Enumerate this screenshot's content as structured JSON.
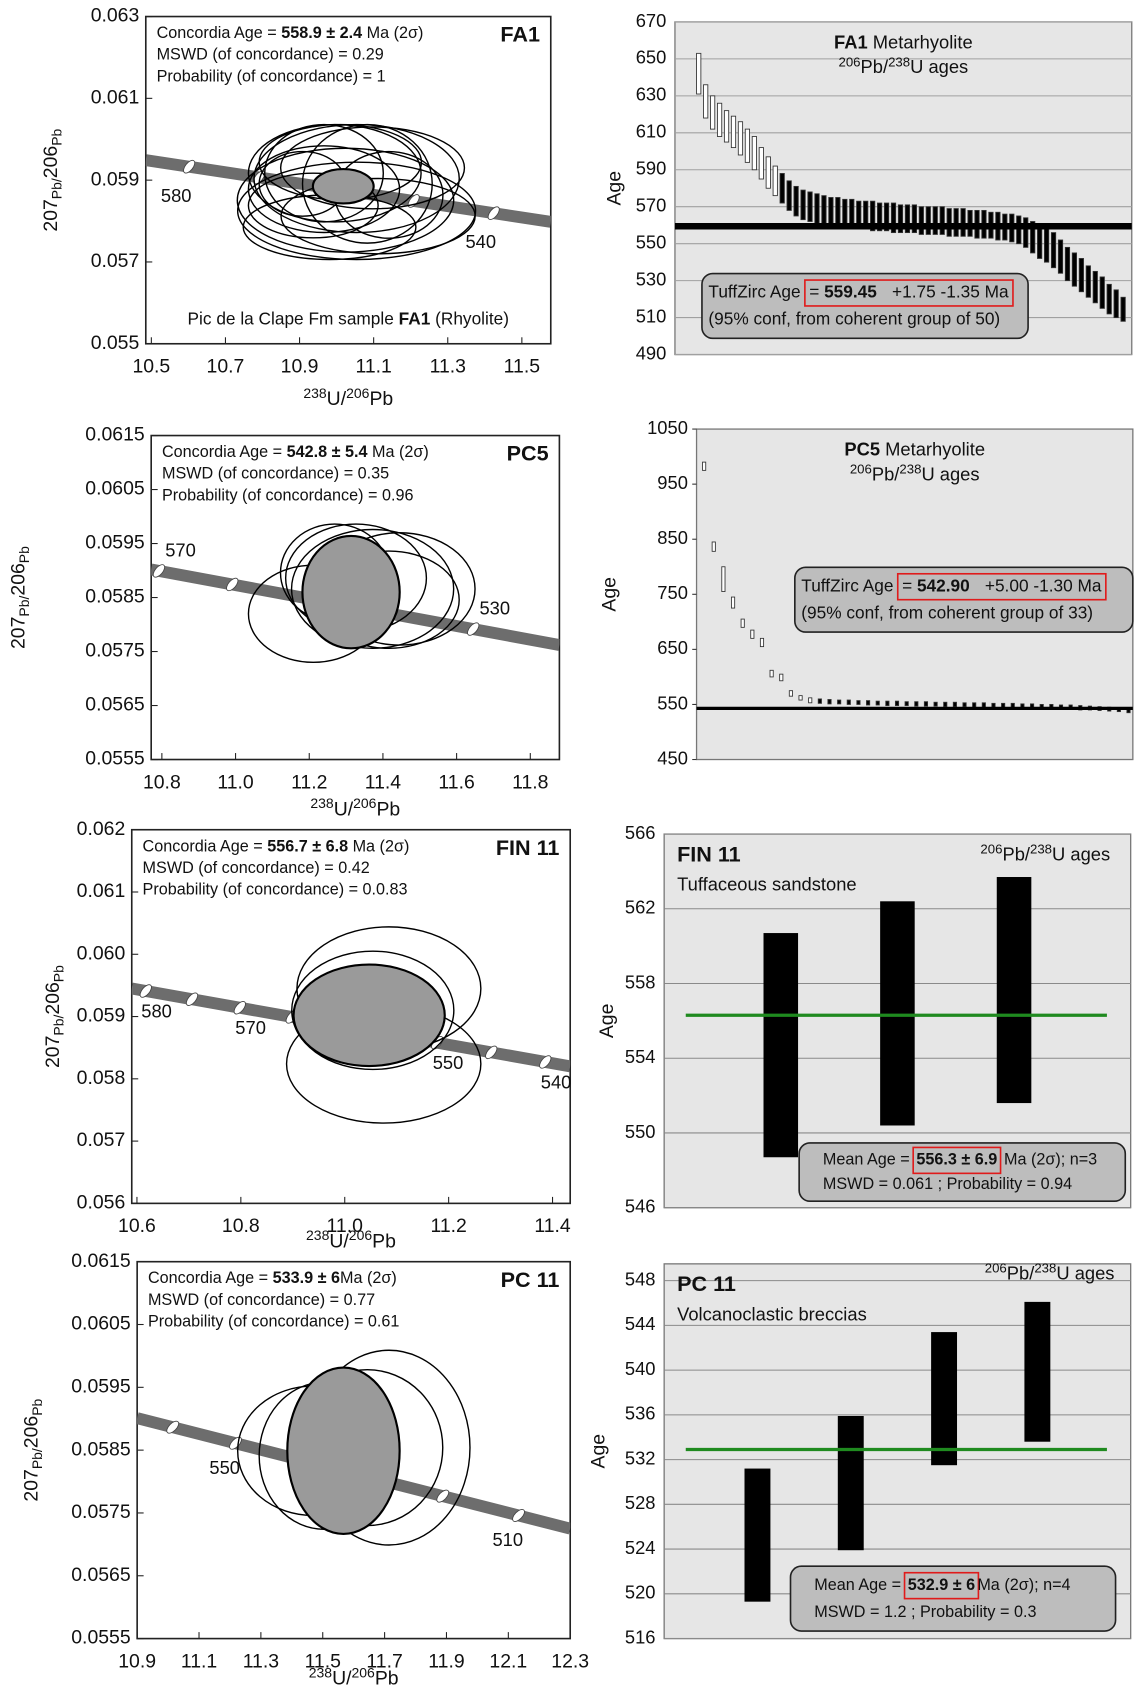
{
  "chart_data": [
    {
      "type": "concordia",
      "sample": "FA1",
      "age_label": "Concordia Age = ",
      "age": "558.9 ± 2.4",
      "age_unit": " Ma (2σ)",
      "mswd": "MSWD (of concordance) = 0.29",
      "probability": "Probability (of concordance) = 1",
      "note": [
        "Pic de la Clape Fm sample ",
        "FA1",
        " (Rhyolite)"
      ],
      "x_label": [
        "238",
        "U/",
        "206",
        "Pb"
      ],
      "y_label": [
        "207",
        "Pb/",
        "206",
        "Pb"
      ],
      "xlim": [
        10.485,
        11.578
      ],
      "xticks": [
        10.5,
        10.7,
        10.9,
        11.1,
        11.3,
        11.5
      ],
      "ylim": [
        0.055,
        0.063
      ],
      "yticks": [
        0.055,
        0.057,
        0.059,
        0.061,
        0.063
      ],
      "concordia": {
        "x": [
          10.485,
          11.578
        ],
        "y": [
          0.05949,
          0.05798
        ]
      },
      "concordia_marks": {
        "x": [
          10.602,
          10.791,
          11.208,
          11.424
        ],
        "labels": [
          580,
          null,
          null,
          540
        ]
      },
      "ellipses": {
        "x": [
          10.995,
          11.054,
          10.966,
          11.024,
          11.083,
          10.937,
          11.112,
          11.01,
          10.981,
          11.141,
          10.908,
          11.054,
          10.966,
          11.097
        ],
        "y": [
          0.05917,
          0.05904,
          0.05878,
          0.05851,
          0.05891,
          0.05838,
          0.05812,
          0.05944,
          0.05785,
          0.05864,
          0.05891,
          0.05825,
          0.05917,
          0.0593
        ],
        "rx": [
          0.233,
          0.277,
          0.204,
          0.292,
          0.175,
          0.175,
          0.262,
          0.219,
          0.233,
          0.146,
          0.117,
          0.321,
          0.16,
          0.248
        ],
        "ry": [
          0.00119,
          0.00132,
          0.00106,
          0.00127,
          0.00145,
          0.00079,
          0.00092,
          0.00092,
          0.00079,
          0.00106,
          0.00079,
          0.00119,
          0.00119,
          0.001
        ]
      },
      "mean_ellipse": {
        "x": 11.018,
        "y": 0.05885,
        "rx": 0.082,
        "ry": 0.00042
      }
    },
    {
      "type": "rank",
      "title": [
        "FA1",
        " Metarhyolite"
      ],
      "subtitle": [
        "206",
        "Pb/",
        "238",
        "U ages"
      ],
      "y_label": "Age",
      "ylim": [
        490,
        670
      ],
      "yticks": [
        490,
        510,
        530,
        550,
        570,
        590,
        610,
        630,
        650,
        670
      ],
      "grid": true,
      "low": [
        631,
        618,
        612,
        608,
        605,
        602,
        598,
        594,
        590,
        585,
        580,
        576,
        572,
        568,
        565,
        563,
        562,
        561,
        560,
        560,
        559,
        559,
        558,
        558,
        558,
        557,
        557,
        557,
        556,
        556,
        556,
        556,
        555,
        555,
        555,
        555,
        554,
        554,
        554,
        554,
        553,
        553,
        553,
        552,
        552,
        551,
        550,
        548,
        545,
        542,
        540,
        537,
        534,
        530,
        527,
        524,
        521,
        518,
        515,
        512,
        510,
        508
      ],
      "high": [
        653,
        636,
        630,
        626,
        622,
        619,
        616,
        612,
        608,
        602,
        597,
        592,
        588,
        584,
        581,
        579,
        578,
        577,
        576,
        575,
        575,
        574,
        574,
        573,
        573,
        573,
        572,
        572,
        572,
        571,
        571,
        571,
        570,
        570,
        570,
        570,
        569,
        569,
        569,
        568,
        568,
        568,
        567,
        567,
        566,
        566,
        565,
        564,
        562,
        560,
        558,
        556,
        552,
        548,
        545,
        542,
        538,
        535,
        532,
        528,
        525,
        521
      ],
      "coherent": [
        false,
        false,
        false,
        false,
        false,
        false,
        false,
        false,
        false,
        false,
        false,
        false,
        true,
        true,
        true,
        true,
        true,
        true,
        true,
        true,
        true,
        true,
        true,
        true,
        true,
        true,
        true,
        true,
        true,
        true,
        true,
        true,
        true,
        true,
        true,
        true,
        true,
        true,
        true,
        true,
        true,
        true,
        true,
        true,
        true,
        true,
        true,
        true,
        true,
        true,
        true,
        true,
        true,
        true,
        true,
        true,
        true,
        true,
        true,
        true,
        true,
        true
      ],
      "mean": 559.45,
      "result": {
        "label": "TuffZirc Age",
        "prefix": "= ",
        "value": "559.45",
        "error": "+1.75 -1.35 Ma",
        "note": "(95% conf, from coherent group of 50)"
      }
    },
    {
      "type": "concordia",
      "sample": "PC5",
      "age_label": "Concordia Age = ",
      "age": "542.8 ± 5.4",
      "age_unit": " Ma (2σ)",
      "mswd": "MSWD (of concordance) = 0.35",
      "probability": "Probability (of concordance) = 0.96",
      "x_label": [
        "238",
        "U/",
        "206",
        "Pb"
      ],
      "y_label": [
        "207",
        "Pb/",
        "206",
        "Pb"
      ],
      "xlim": [
        10.771,
        11.879
      ],
      "xticks": [
        10.8,
        {
          "value": 11,
          "label": "11.0"
        },
        11.2,
        11.4,
        11.6,
        11.8
      ],
      "ylim": [
        0.0555,
        0.0615
      ],
      "yticks": [
        0.0555,
        0.0565,
        0.0575,
        0.0585,
        0.0595,
        0.0605,
        0.0615
      ],
      "concordia": {
        "x": [
          10.771,
          11.879
        ],
        "y": [
          0.05902,
          0.05762
        ]
      },
      "concordia_marks": {
        "x": [
          10.792,
          10.991,
          11.425,
          11.645
        ],
        "labels": [
          570,
          null,
          null,
          530
        ]
      },
      "ellipses": {
        "x": [
          11.211,
          11.372,
          11.327,
          11.445,
          11.416,
          11.269
        ],
        "y": [
          0.0582,
          0.05866,
          0.05886,
          0.05866,
          0.05846,
          0.05896
        ],
        "rx": [
          0.176,
          0.22,
          0.191,
          0.205,
          0.191,
          0.147
        ],
        "ry": [
          0.0009,
          0.0011,
          0.001,
          0.00104,
          0.0009,
          0.0009
        ]
      },
      "mean_ellipse": {
        "x": 11.3135,
        "y": 0.0586,
        "rx": 0.132,
        "ry": 0.00104
      }
    },
    {
      "type": "rank",
      "title": [
        "PC5",
        " Metarhyolite"
      ],
      "subtitle": [
        "206",
        "Pb/",
        "238",
        "U ages"
      ],
      "y_label": "Age",
      "ylim": [
        450,
        1050
      ],
      "yticks": [
        450,
        550,
        650,
        750,
        850,
        950,
        1050
      ],
      "grid": false,
      "low": [
        975,
        828,
        755,
        725,
        690,
        670,
        655,
        600,
        593,
        565,
        558,
        553,
        552,
        551,
        551,
        550,
        550,
        549,
        549,
        548,
        548,
        548,
        547,
        547,
        547,
        546,
        546,
        546,
        545,
        545,
        545,
        544,
        544,
        544,
        543,
        543,
        542,
        542,
        541,
        540,
        540,
        539,
        538,
        537,
        535
      ],
      "high": [
        990,
        845,
        800,
        745,
        705,
        685,
        670,
        612,
        605,
        575,
        566,
        562,
        560,
        559,
        558,
        558,
        557,
        557,
        556,
        556,
        556,
        555,
        555,
        555,
        554,
        554,
        554,
        553,
        553,
        553,
        552,
        552,
        552,
        551,
        551,
        550,
        550,
        549,
        549,
        548,
        547,
        546,
        545,
        544,
        543
      ],
      "coherent": [
        false,
        false,
        false,
        false,
        false,
        false,
        false,
        false,
        false,
        false,
        false,
        false,
        true,
        true,
        true,
        true,
        true,
        true,
        true,
        true,
        true,
        true,
        true,
        true,
        true,
        true,
        true,
        true,
        true,
        true,
        true,
        true,
        true,
        true,
        true,
        true,
        true,
        true,
        true,
        true,
        true,
        true,
        true,
        true,
        true
      ],
      "mean": 542.9,
      "result": {
        "label": "TuffZirc Age",
        "prefix": "= ",
        "value": "542.90",
        "error": "+5.00 -1.30 Ma",
        "note": "(95% conf, from coherent group of 33)"
      }
    },
    {
      "type": "concordia",
      "sample": "FIN 11",
      "age_label": "Concordia Age = ",
      "age": "556.7 ± 6.8",
      "age_unit": " Ma (2σ)",
      "mswd": "MSWD (of concordance) = 0.42",
      "probability": "Probability (of concordance) = 0.0.83",
      "x_label": [
        "238",
        "U/",
        "206",
        "Pb"
      ],
      "y_label": [
        "207",
        "Pb/",
        "206",
        "Pb"
      ],
      "xlim": [
        10.59,
        11.434
      ],
      "xticks": [
        10.6,
        10.8,
        {
          "value": 11,
          "label": "11.0"
        },
        11.2,
        11.4
      ],
      "ylim": [
        0.056,
        0.062
      ],
      "yticks": [
        0.056,
        0.057,
        0.058,
        0.059,
        {
          "value": 0.06,
          "label": "0.060"
        },
        0.061,
        0.062
      ],
      "concordia": {
        "x": [
          10.59,
          11.434
        ],
        "y": [
          0.05945,
          0.0582
        ]
      },
      "concordia_marks": {
        "x": [
          10.617,
          10.706,
          10.798,
          10.898,
          11.178,
          11.282,
          11.386
        ],
        "labels": [
          580,
          null,
          570,
          null,
          550,
          null,
          540
        ]
      },
      "ellipses": {
        "x": [
          11.085,
          11.075,
          11.054
        ],
        "y": [
          0.05945,
          0.05824,
          0.0591
        ],
        "rx": [
          0.177,
          0.187,
          0.156
        ],
        "ry": [
          0.00099,
          0.00095,
          0.00095
        ]
      },
      "mean_ellipse": {
        "x": 11.047,
        "y": 0.05902,
        "rx": 0.1455,
        "ry": 0.000815
      }
    },
    {
      "type": "mean",
      "sample": "FIN 11",
      "description": "Tuffaceous sandstone",
      "subtitle": [
        "206",
        "Pb/",
        "238",
        "U ages"
      ],
      "y_label": "Age",
      "ylim": [
        546,
        566
      ],
      "yticks": [
        546,
        550,
        554,
        558,
        562,
        566
      ],
      "grid": true,
      "low": [
        548.7,
        550.4,
        551.6
      ],
      "high": [
        560.7,
        562.4,
        563.7
      ],
      "mean": 556.3,
      "mean_color": "#1f8a1f",
      "result": {
        "label": "Mean Age = ",
        "value": "556.3 ± 6.9",
        "unit": " Ma (2σ); n=3",
        "stats": "MSWD = 0.061 ; Probability = 0.94"
      }
    },
    {
      "type": "concordia",
      "sample": "PC 11",
      "age_label": "Concordia Age = ",
      "age": "533.9 ± 6",
      "age_unit": "Ma (2σ)",
      "mswd": "MSWD (of concordance) = 0.77",
      "probability": "Probability (of concordance) = 0.61",
      "x_label": [
        "238",
        "U/",
        "206",
        "Pb"
      ],
      "y_label": [
        "207",
        "Pb/",
        "206",
        "Pb"
      ],
      "xlim": [
        10.9,
        12.3
      ],
      "xticks": [
        10.9,
        11.1,
        11.3,
        11.5,
        11.7,
        11.9,
        12.1,
        12.3
      ],
      "ylim": [
        0.0555,
        0.0615
      ],
      "yticks": [
        0.0555,
        0.0565,
        0.0575,
        0.0585,
        0.0595,
        0.0605,
        0.0615
      ],
      "concordia": {
        "x": [
          10.9,
          12.3
        ],
        "y": [
          0.05901,
          0.05725
        ]
      },
      "concordia_marks": {
        "x": [
          11.015,
          11.218,
          11.888,
          12.133
        ],
        "labels": [
          null,
          550,
          null,
          510
        ]
      },
      "ellipses": {
        "x": [
          11.469,
          11.644,
          11.714,
          11.504
        ],
        "y": [
          0.05849,
          0.05854,
          0.05854,
          0.05841
        ],
        "rx": [
          0.244,
          0.244,
          0.262,
          0.2095
        ],
        "ry": [
          0.00103,
          0.00124,
          0.00155,
          0.00117
        ]
      },
      "mean_ellipse": {
        "x": 11.567,
        "y": 0.05849,
        "rx": 0.1816,
        "ry": 0.001324
      }
    },
    {
      "type": "mean",
      "sample": "PC 11",
      "description": "Volcanoclastic breccias",
      "subtitle": [
        "206",
        "Pb/",
        "238",
        "U ages"
      ],
      "y_label": "Age",
      "ylim": [
        516,
        549.5
      ],
      "yticks": [
        516,
        520,
        524,
        528,
        532,
        536,
        540,
        544,
        548
      ],
      "grid": true,
      "low": [
        519.3,
        523.9,
        531.5,
        533.6
      ],
      "high": [
        531.2,
        535.9,
        543.4,
        546.1
      ],
      "mean": 532.9,
      "mean_color": "#1f8a1f",
      "result": {
        "label": "Mean Age = ",
        "value": "532.9 ± 6",
        "unit": "Ma (2σ); n=4",
        "stats": "MSWD = 1.2 ; Probability = 0.3"
      }
    }
  ]
}
